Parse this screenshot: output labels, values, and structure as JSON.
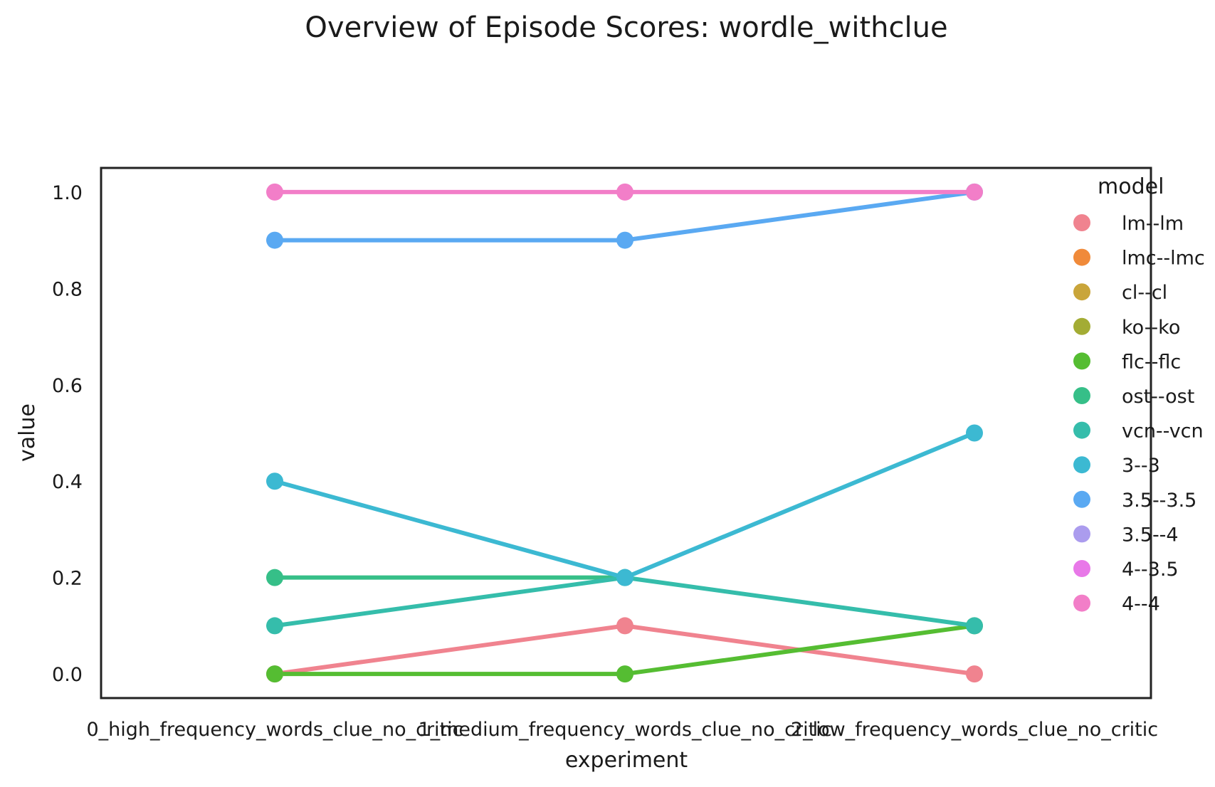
{
  "chart_data": {
    "type": "line",
    "title": "Overview of Episode Scores: wordle_withclue",
    "xlabel": "experiment",
    "ylabel": "value",
    "ylim": [
      -0.05,
      1.05
    ],
    "yticks": [
      "0.0",
      "0.2",
      "0.4",
      "0.6",
      "0.8",
      "1.0"
    ],
    "grid": false,
    "legend_title": "model",
    "legend_position": "top-right",
    "categories": [
      "0_high_frequency_words_clue_no_critic",
      "1_medium_frequency_words_clue_no_critic",
      "2_low_frequency_words_clue_no_critic"
    ],
    "series": [
      {
        "name": "lm--lm",
        "color": "#f0838f",
        "values": [
          0.0,
          0.1,
          0.0
        ]
      },
      {
        "name": "lmc--lmc",
        "color": "#f08a3a",
        "values": [
          null,
          null,
          null
        ]
      },
      {
        "name": "cl--cl",
        "color": "#c9a53a",
        "values": [
          null,
          null,
          null
        ]
      },
      {
        "name": "ko--ko",
        "color": "#a3ac34",
        "values": [
          null,
          null,
          null
        ]
      },
      {
        "name": "flc--flc",
        "color": "#55bd32",
        "values": [
          0.0,
          0.0,
          0.1
        ]
      },
      {
        "name": "ost--ost",
        "color": "#36bf88",
        "values": [
          0.2,
          0.2,
          null
        ]
      },
      {
        "name": "vcn--vcn",
        "color": "#35bdab",
        "values": [
          0.1,
          0.2,
          0.1
        ]
      },
      {
        "name": "3--3",
        "color": "#3cb9d2",
        "values": [
          0.4,
          0.2,
          0.5
        ]
      },
      {
        "name": "3.5--3.5",
        "color": "#5aa9f2",
        "values": [
          0.9,
          0.9,
          1.0
        ]
      },
      {
        "name": "3.5--4",
        "color": "#ab9cee",
        "values": [
          null,
          null,
          null
        ]
      },
      {
        "name": "4--3.5",
        "color": "#e878e8",
        "values": [
          null,
          null,
          null
        ]
      },
      {
        "name": "4--4",
        "color": "#f27ec8",
        "values": [
          1.0,
          1.0,
          1.0
        ]
      }
    ]
  }
}
